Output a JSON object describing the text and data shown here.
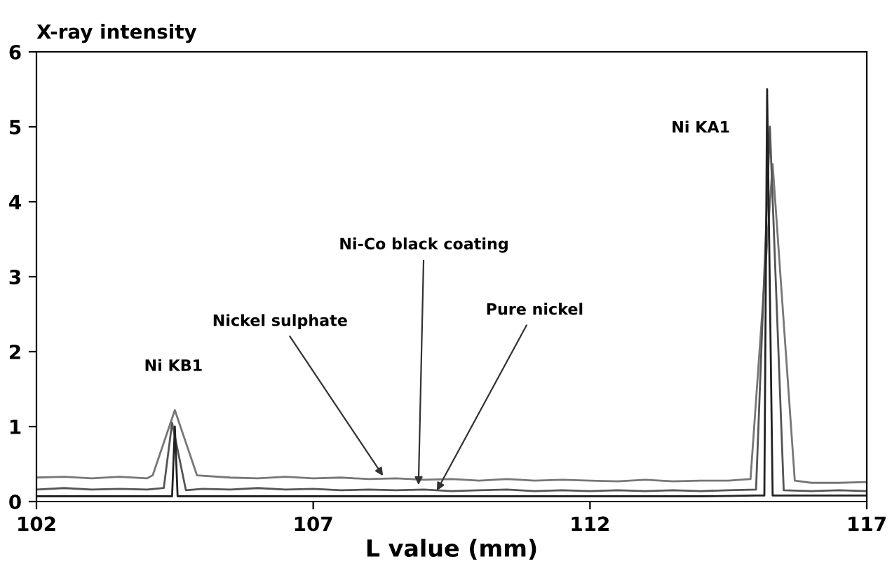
{
  "chart_data": {
    "type": "line",
    "ylabel": "X-ray intensity",
    "xlabel": "L value (mm)",
    "xlim": [
      102,
      117
    ],
    "xticks": [
      102,
      107,
      112,
      117
    ],
    "ylim": [
      0,
      6
    ],
    "yticks": [
      0,
      1,
      2,
      3,
      4,
      5,
      6
    ],
    "grid": false,
    "legend": false,
    "marker": "none",
    "line_style": "solid",
    "series": [
      {
        "color": "#777777",
        "x": [
          102,
          102.5,
          103,
          103.5,
          104,
          104.1,
          104.5,
          104.9,
          105.5,
          106,
          106.5,
          107,
          107.5,
          108,
          108.5,
          109,
          109.5,
          110,
          110.5,
          111,
          111.5,
          112,
          112.5,
          113,
          113.5,
          114,
          114.5,
          114.9,
          115.3,
          115.7,
          116,
          116.5,
          117
        ],
        "values": [
          0.32,
          0.33,
          0.31,
          0.33,
          0.31,
          0.35,
          1.22,
          0.35,
          0.32,
          0.31,
          0.33,
          0.31,
          0.32,
          0.3,
          0.31,
          0.29,
          0.3,
          0.28,
          0.3,
          0.28,
          0.29,
          0.28,
          0.27,
          0.29,
          0.27,
          0.28,
          0.28,
          0.3,
          4.5,
          0.28,
          0.25,
          0.25,
          0.26
        ]
      },
      {
        "color": "#555555",
        "x": [
          102,
          102.5,
          103,
          103.5,
          104,
          104.3,
          104.45,
          104.7,
          105,
          105.5,
          106,
          106.5,
          107,
          107.5,
          108,
          108.5,
          109,
          109.5,
          110,
          110.5,
          111,
          111.5,
          112,
          112.5,
          113,
          113.5,
          114,
          114.5,
          115,
          115.25,
          115.5,
          116,
          116.5,
          117
        ],
        "values": [
          0.16,
          0.18,
          0.16,
          0.17,
          0.16,
          0.18,
          1.05,
          0.15,
          0.17,
          0.16,
          0.18,
          0.16,
          0.17,
          0.15,
          0.16,
          0.15,
          0.16,
          0.14,
          0.15,
          0.16,
          0.14,
          0.15,
          0.14,
          0.15,
          0.14,
          0.15,
          0.14,
          0.15,
          0.16,
          5.0,
          0.15,
          0.14,
          0.15,
          0.14
        ]
      },
      {
        "color": "#222222",
        "x": [
          102,
          103,
          104,
          104.45,
          104.5,
          104.55,
          105,
          106,
          107,
          108,
          109,
          110,
          111,
          112,
          113,
          114,
          115,
          115.15,
          115.2,
          115.3,
          116,
          117
        ],
        "values": [
          0.07,
          0.07,
          0.07,
          0.07,
          1.0,
          0.07,
          0.07,
          0.07,
          0.07,
          0.07,
          0.07,
          0.07,
          0.07,
          0.07,
          0.07,
          0.07,
          0.08,
          0.08,
          5.5,
          0.08,
          0.08,
          0.08
        ]
      }
    ],
    "annotations": [
      "Ni KB1",
      {
        "text": "Nickel sulphate",
        "x": 108.3,
        "y": 0.3
      },
      {
        "text": "Ni-Co black coating",
        "x": 108.9,
        "y": 0.17
      },
      {
        "text": "Pure nickel",
        "x": 109.2,
        "y": 0.1
      },
      "Ni KA1"
    ]
  }
}
